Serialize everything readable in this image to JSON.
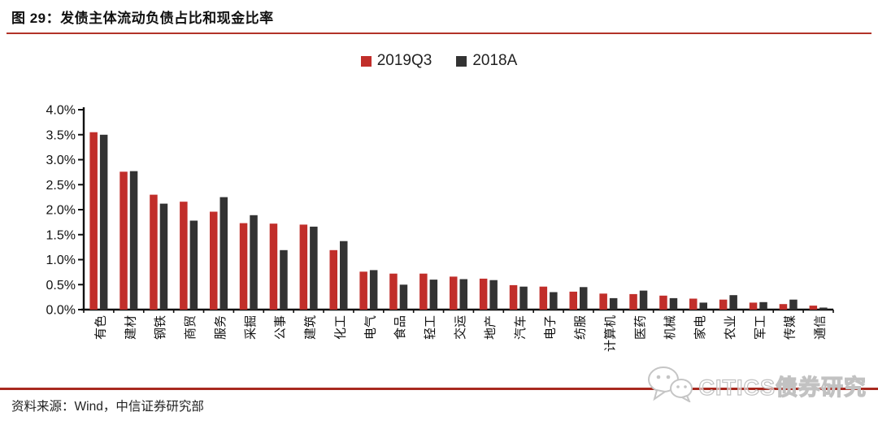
{
  "header": {
    "title": "图 29：发债主体流动负债占比和现金比率"
  },
  "legend": [
    {
      "label": "2019Q3",
      "color": "#C12E2A"
    },
    {
      "label": "2018A",
      "color": "#333333"
    }
  ],
  "chart_data": {
    "type": "bar",
    "title": "发债主体流动负债占比和现金比率",
    "categories": [
      "有色",
      "建材",
      "钢铁",
      "商贸",
      "服务",
      "采掘",
      "公事",
      "建筑",
      "化工",
      "电气",
      "食品",
      "轻工",
      "交运",
      "地产",
      "汽车",
      "电子",
      "纺服",
      "计算机",
      "医药",
      "机械",
      "家电",
      "农业",
      "军工",
      "传媒",
      "通信"
    ],
    "series": [
      {
        "name": "2019Q3",
        "color": "#C12E2A",
        "values": [
          3.55,
          2.76,
          2.3,
          2.16,
          1.96,
          1.73,
          1.72,
          1.7,
          1.19,
          0.76,
          0.72,
          0.72,
          0.66,
          0.62,
          0.49,
          0.46,
          0.36,
          0.32,
          0.31,
          0.28,
          0.22,
          0.2,
          0.14,
          0.11,
          0.08
        ]
      },
      {
        "name": "2018A",
        "color": "#333333",
        "values": [
          3.5,
          2.77,
          2.12,
          1.78,
          2.25,
          1.89,
          1.19,
          1.66,
          1.37,
          0.79,
          0.5,
          0.6,
          0.61,
          0.59,
          0.46,
          0.35,
          0.45,
          0.23,
          0.38,
          0.23,
          0.14,
          0.29,
          0.15,
          0.2,
          0.04
        ]
      }
    ],
    "xlabel": "",
    "ylabel": "",
    "ylim": [
      0,
      4
    ],
    "y_tick_step": 0.5,
    "y_tick_labels": [
      "0.0%",
      "0.5%",
      "1.0%",
      "1.5%",
      "2.0%",
      "2.5%",
      "3.0%",
      "3.5%",
      "4.0%"
    ],
    "legend_position": "top-center",
    "grid": false,
    "x_label_rotation_deg": -90
  },
  "footer": {
    "source": "资料来源：Wind，中信证券研究部",
    "watermark": "CITICS债券研究",
    "watermark_icon": "wechat-icon"
  },
  "colors": {
    "accent_red": "#C12E2A",
    "bar_dark": "#333333",
    "rule_red": "#B23228",
    "watermark_gray": "#C9C9C9"
  }
}
